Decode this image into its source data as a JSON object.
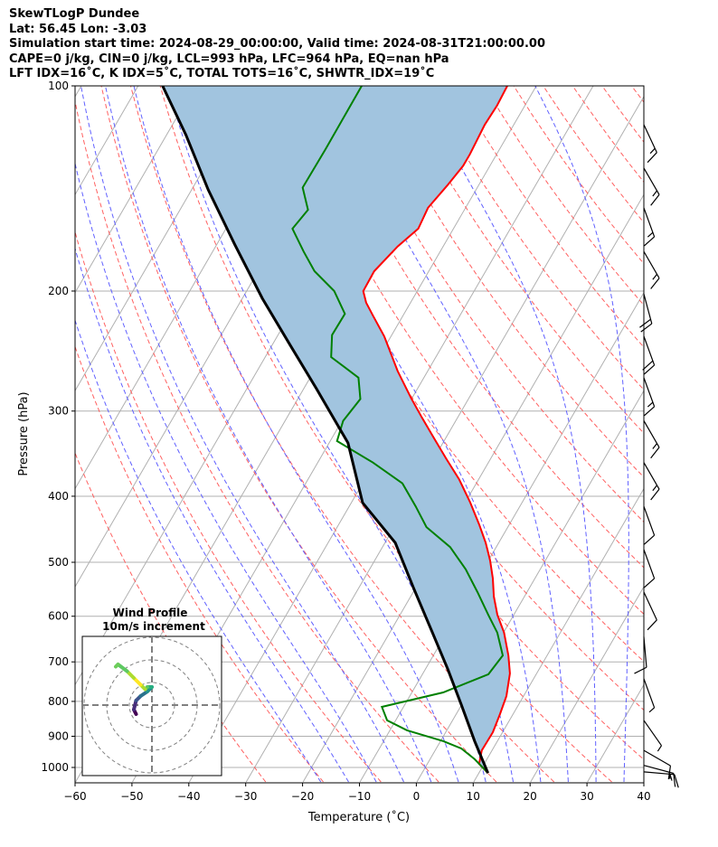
{
  "header": {
    "title": "SkewTLogP Dundee",
    "location": "Lat: 56.45   Lon: -3.03",
    "times": "Simulation start time: 2024-08-29_00:00:00, Valid time: 2024-08-31T21:00:00.00",
    "indices1": "CAPE=0 j/kg, CIN=0 j/kg, LCL=993 hPa, LFC=964 hPa, EQ=nan hPa",
    "indices2": "LFT IDX=16˚C, K IDX=5˚C, TOTAL TOTS=16˚C, SHWTR_IDX=19˚C"
  },
  "chart_data": {
    "type": "line",
    "subtype": "skew-t log-p",
    "xlabel": "Temperature (˚C)",
    "ylabel": "Pressure (hPa)",
    "xlim": [
      -60,
      40
    ],
    "ylim": [
      1050,
      100
    ],
    "xticks": [
      "−60",
      "−50",
      "−40",
      "−30",
      "−20",
      "−10",
      "0",
      "10",
      "20",
      "30",
      "40"
    ],
    "yticks": [
      "100",
      "200",
      "300",
      "400",
      "500",
      "600",
      "700",
      "800",
      "900",
      "1000"
    ],
    "colors": {
      "temperature": "#ff0000",
      "dewpoint": "#008000",
      "parcel": "#000000",
      "cape_fill": "#a1c4df",
      "isotherm": "#b0b0b0",
      "dry_adiabat": "#ff6060",
      "moist_adiabat": "#6060ff"
    },
    "series": [
      {
        "name": "temperature",
        "p": [
          1019,
          988,
          944,
          888,
          835,
          786,
          728,
          685,
          634,
          597,
          561,
          528,
          497,
          468,
          440,
          408,
          378,
          353,
          329,
          307,
          287,
          262,
          233,
          218,
          208,
          200,
          187,
          172,
          162,
          151,
          140,
          131,
          126,
          114,
          107,
          100
        ],
        "t": [
          11.6,
          9.1,
          8.2,
          8.3,
          7.7,
          7.0,
          5.3,
          3.2,
          0.1,
          -2.9,
          -5.4,
          -7.4,
          -9.7,
          -12.3,
          -15.3,
          -19.2,
          -23.4,
          -27.7,
          -32.0,
          -36.2,
          -40.2,
          -45.3,
          -51.2,
          -55.1,
          -57.8,
          -59.5,
          -59.6,
          -58.0,
          -56.2,
          -56.6,
          -55.5,
          -54.7,
          -54.7,
          -55.1,
          -54.9,
          -55.1
        ]
      },
      {
        "name": "dewpoint",
        "p": [
          1019,
          973,
          938,
          915,
          882,
          853,
          815,
          776,
          730,
          685,
          634,
          597,
          553,
          512,
          475,
          444,
          414,
          383,
          357,
          332,
          310,
          288,
          268,
          250,
          232,
          216,
          200,
          187,
          175,
          162,
          152,
          141,
          124,
          100
        ],
        "t": [
          11.6,
          7.9,
          4.4,
          0.5,
          -7.0,
          -11.5,
          -13.8,
          -4.5,
          1.6,
          2.2,
          -1.1,
          -4.5,
          -8.7,
          -13.1,
          -18.1,
          -24.3,
          -28.3,
          -33.0,
          -40.3,
          -48.8,
          -49.8,
          -49.0,
          -51.5,
          -58.4,
          -60.5,
          -60.4,
          -64.6,
          -70.1,
          -74.0,
          -78.3,
          -77.5,
          -80.7,
          -80.6,
          -80.7
        ]
      },
      {
        "name": "parcel",
        "p": [
          1019,
          915,
          810,
          717,
          634,
          545,
          468,
          409,
          334,
          278,
          239,
          205,
          171,
          142,
          118,
          100
        ],
        "t": [
          11.6,
          6.0,
          0.0,
          -6.1,
          -12.5,
          -20.4,
          -28.2,
          -38.0,
          -46.7,
          -57.8,
          -67.1,
          -76.5,
          -86.8,
          -97.1,
          -106.6,
          -115.7
        ]
      }
    ],
    "wind_barbs": [
      {
        "p": 114,
        "dir": 155,
        "speed_kt": 15
      },
      {
        "p": 132,
        "dir": 150,
        "speed_kt": 15
      },
      {
        "p": 151,
        "dir": 160,
        "speed_kt": 15
      },
      {
        "p": 175,
        "dir": 150,
        "speed_kt": 15
      },
      {
        "p": 202,
        "dir": 165,
        "speed_kt": 20
      },
      {
        "p": 233,
        "dir": 160,
        "speed_kt": 20
      },
      {
        "p": 268,
        "dir": 160,
        "speed_kt": 15
      },
      {
        "p": 310,
        "dir": 150,
        "speed_kt": 15
      },
      {
        "p": 357,
        "dir": 150,
        "speed_kt": 15
      },
      {
        "p": 414,
        "dir": 160,
        "speed_kt": 10
      },
      {
        "p": 479,
        "dir": 160,
        "speed_kt": 10
      },
      {
        "p": 553,
        "dir": 155,
        "speed_kt": 10
      },
      {
        "p": 643,
        "dir": 175,
        "speed_kt": 10
      },
      {
        "p": 741,
        "dir": 160,
        "speed_kt": 5
      },
      {
        "p": 853,
        "dir": 145,
        "speed_kt": 5
      },
      {
        "p": 944,
        "dir": 120,
        "speed_kt": 10
      },
      {
        "p": 993,
        "dir": 105,
        "speed_kt": 15
      },
      {
        "p": 1015,
        "dir": 95,
        "speed_kt": 15
      }
    ],
    "hodograph": {
      "title": "Wind Profile",
      "subtitle": "10m/s increment",
      "rings_ms": [
        10,
        20,
        30
      ],
      "u": [
        -7,
        -8,
        -7,
        -5,
        -2,
        0,
        -2,
        -3,
        -5,
        -8,
        -11,
        -15,
        -16
      ],
      "v": [
        -4,
        -2,
        2,
        4,
        6,
        8,
        8,
        7,
        9,
        12,
        15,
        18,
        17
      ]
    }
  }
}
